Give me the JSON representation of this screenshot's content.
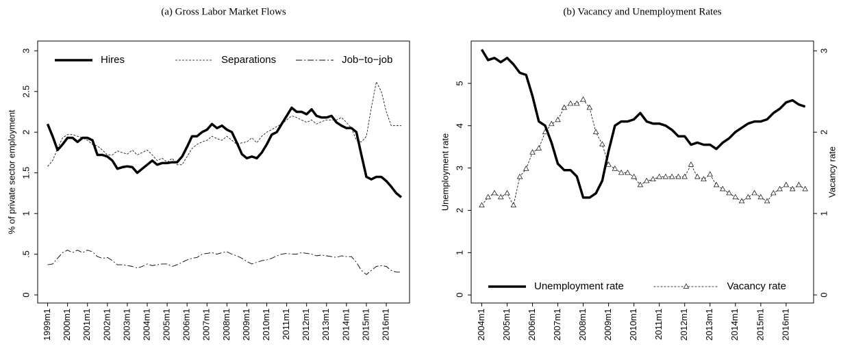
{
  "chart_data": [
    {
      "type": "line",
      "title": "(a) Gross Labor Market Flows",
      "ylabel": "% of private sector employment",
      "legend": "top",
      "x": [
        "1999m1",
        "1999m4",
        "1999m7",
        "1999m10",
        "2000m1",
        "2000m4",
        "2000m7",
        "2000m10",
        "2001m1",
        "2001m4",
        "2001m7",
        "2001m10",
        "2002m1",
        "2002m4",
        "2002m7",
        "2002m10",
        "2003m1",
        "2003m4",
        "2003m7",
        "2003m10",
        "2004m1",
        "2004m4",
        "2004m7",
        "2004m10",
        "2005m1",
        "2005m4",
        "2005m7",
        "2005m10",
        "2006m1",
        "2006m4",
        "2006m7",
        "2006m10",
        "2007m1",
        "2007m4",
        "2007m7",
        "2007m10",
        "2008m1",
        "2008m4",
        "2008m7",
        "2008m10",
        "2009m1",
        "2009m4",
        "2009m7",
        "2009m10",
        "2010m1",
        "2010m4",
        "2010m7",
        "2010m10",
        "2011m1",
        "2011m4",
        "2011m7",
        "2011m10",
        "2012m1",
        "2012m4",
        "2012m7",
        "2012m10",
        "2013m1",
        "2013m4",
        "2013m7",
        "2013m10",
        "2014m1",
        "2014m4",
        "2014m7",
        "2014m10",
        "2015m1",
        "2015m4",
        "2015m7",
        "2015m10",
        "2016m1",
        "2016m4",
        "2016m7",
        "2016m10"
      ],
      "xlim": [
        "1998m7",
        "2017m3"
      ],
      "xticks": [
        "1999m1",
        "2000m1",
        "2001m1",
        "2002m1",
        "2003m1",
        "2004m1",
        "2005m1",
        "2006m1",
        "2007m1",
        "2008m1",
        "2009m1",
        "2010m1",
        "2011m1",
        "2012m1",
        "2013m1",
        "2014m1",
        "2015m1",
        "2016m1"
      ],
      "ylim": [
        -0.1,
        3.12
      ],
      "yticks": [
        0,
        {
          "value": 0.5,
          "label": ".5"
        },
        1,
        1.5,
        2,
        2.5,
        3
      ],
      "series": [
        {
          "name": "Hires",
          "color": "#000000",
          "line_style": "solid",
          "line_width": 3.5,
          "values": [
            2.1,
            1.95,
            1.78,
            1.85,
            1.93,
            1.93,
            1.88,
            1.93,
            1.93,
            1.9,
            1.72,
            1.72,
            1.7,
            1.65,
            1.55,
            1.57,
            1.58,
            1.57,
            1.5,
            1.55,
            1.6,
            1.65,
            1.6,
            1.62,
            1.62,
            1.63,
            1.63,
            1.7,
            1.82,
            1.95,
            1.95,
            2.0,
            2.03,
            2.1,
            2.05,
            2.08,
            2.03,
            2.0,
            1.87,
            1.73,
            1.68,
            1.7,
            1.68,
            1.75,
            1.85,
            1.97,
            2.0,
            2.1,
            2.2,
            2.3,
            2.25,
            2.25,
            2.22,
            2.28,
            2.2,
            2.18,
            2.18,
            2.2,
            2.12,
            2.08,
            2.05,
            2.05,
            2.0,
            1.72,
            1.45,
            1.42,
            1.45,
            1.45,
            1.4,
            1.33,
            1.25,
            1.2
          ]
        },
        {
          "name": "Separations",
          "color": "#000000",
          "line_style": "dashed",
          "line_width": 0.8,
          "values": [
            1.58,
            1.65,
            1.8,
            1.93,
            1.97,
            1.97,
            1.95,
            1.93,
            1.9,
            1.85,
            1.83,
            1.78,
            1.72,
            1.72,
            1.77,
            1.75,
            1.73,
            1.78,
            1.72,
            1.75,
            1.78,
            1.72,
            1.65,
            1.68,
            1.63,
            1.68,
            1.6,
            1.6,
            1.7,
            1.8,
            1.85,
            1.88,
            1.9,
            1.95,
            1.92,
            1.9,
            1.95,
            1.9,
            1.85,
            1.87,
            1.88,
            1.93,
            1.87,
            1.95,
            2.0,
            2.03,
            2.07,
            2.1,
            2.15,
            2.2,
            2.18,
            2.15,
            2.12,
            2.15,
            2.1,
            2.13,
            2.15,
            2.15,
            2.15,
            2.18,
            2.12,
            2.05,
            1.9,
            1.88,
            1.95,
            2.3,
            2.62,
            2.5,
            2.25,
            2.08,
            2.08,
            2.08
          ]
        },
        {
          "name": "Job−to−job",
          "color": "#000000",
          "line_style": "dashdot",
          "line_width": 0.9,
          "values": [
            0.37,
            0.38,
            0.45,
            0.52,
            0.55,
            0.52,
            0.55,
            0.52,
            0.55,
            0.53,
            0.47,
            0.45,
            0.46,
            0.42,
            0.37,
            0.37,
            0.36,
            0.35,
            0.33,
            0.35,
            0.38,
            0.36,
            0.37,
            0.38,
            0.38,
            0.35,
            0.37,
            0.4,
            0.43,
            0.45,
            0.46,
            0.5,
            0.51,
            0.52,
            0.5,
            0.52,
            0.53,
            0.5,
            0.48,
            0.45,
            0.41,
            0.38,
            0.4,
            0.42,
            0.43,
            0.45,
            0.48,
            0.5,
            0.51,
            0.5,
            0.5,
            0.52,
            0.51,
            0.5,
            0.48,
            0.49,
            0.48,
            0.47,
            0.46,
            0.48,
            0.47,
            0.47,
            0.4,
            0.3,
            0.25,
            0.3,
            0.35,
            0.36,
            0.35,
            0.3,
            0.28,
            0.28
          ]
        }
      ]
    },
    {
      "type": "line",
      "title": "(b) Vacancy and Unemployment Rates",
      "ylabel": "Unemployment rate",
      "y2label": "Vacancy rate",
      "legend": "bottom",
      "x": [
        "2004m1",
        "2004m4",
        "2004m7",
        "2004m10",
        "2005m1",
        "2005m4",
        "2005m7",
        "2005m10",
        "2006m1",
        "2006m4",
        "2006m7",
        "2006m10",
        "2007m1",
        "2007m4",
        "2007m7",
        "2007m10",
        "2008m1",
        "2008m4",
        "2008m7",
        "2008m10",
        "2009m1",
        "2009m4",
        "2009m7",
        "2009m10",
        "2010m1",
        "2010m4",
        "2010m7",
        "2010m10",
        "2011m1",
        "2011m4",
        "2011m7",
        "2011m10",
        "2012m1",
        "2012m4",
        "2012m7",
        "2012m10",
        "2013m1",
        "2013m4",
        "2013m7",
        "2013m10",
        "2014m1",
        "2014m4",
        "2014m7",
        "2014m10",
        "2015m1",
        "2015m4",
        "2015m7",
        "2015m10",
        "2016m1",
        "2016m4",
        "2016m7",
        "2016m10"
      ],
      "xlim": [
        "2003m8",
        "2017m2"
      ],
      "xticks": [
        "2004m1",
        "2005m1",
        "2006m1",
        "2007m1",
        "2008m1",
        "2009m1",
        "2010m1",
        "2011m1",
        "2012m1",
        "2013m1",
        "2014m1",
        "2015m1",
        "2016m1"
      ],
      "ylim": [
        -0.19,
        6.0
      ],
      "yticks": [
        0,
        1,
        2,
        3,
        4,
        5
      ],
      "y2lim": [
        -0.1,
        3.12
      ],
      "y2ticks": [
        0,
        1,
        2,
        3
      ],
      "series": [
        {
          "name": "Unemployment rate",
          "color": "#000000",
          "line_style": "solid",
          "line_width": 3.5,
          "values": [
            5.8,
            5.55,
            5.6,
            5.5,
            5.6,
            5.45,
            5.25,
            5.2,
            4.7,
            4.1,
            4.0,
            3.6,
            3.1,
            2.95,
            2.95,
            2.8,
            2.3,
            2.3,
            2.4,
            2.7,
            3.4,
            4.0,
            4.1,
            4.1,
            4.15,
            4.3,
            4.1,
            4.05,
            4.05,
            4.0,
            3.9,
            3.75,
            3.75,
            3.55,
            3.6,
            3.55,
            3.55,
            3.45,
            3.6,
            3.7,
            3.85,
            3.95,
            4.05,
            4.1,
            4.1,
            4.15,
            4.3,
            4.4,
            4.55,
            4.6,
            4.5,
            4.45
          ]
        },
        {
          "name": "Vacancy rate",
          "color": "#000000",
          "line_style": "dashed",
          "line_width": 0.8,
          "marker": "triangle",
          "axis": "y2",
          "values": [
            1.1,
            1.2,
            1.25,
            1.2,
            1.25,
            1.1,
            1.45,
            1.55,
            1.75,
            1.8,
            2.0,
            2.1,
            2.15,
            2.3,
            2.35,
            2.35,
            2.4,
            2.3,
            2.0,
            1.85,
            1.6,
            1.55,
            1.5,
            1.5,
            1.45,
            1.35,
            1.4,
            1.42,
            1.45,
            1.45,
            1.45,
            1.45,
            1.45,
            1.6,
            1.45,
            1.42,
            1.48,
            1.35,
            1.3,
            1.25,
            1.2,
            1.15,
            1.2,
            1.25,
            1.2,
            1.15,
            1.25,
            1.3,
            1.35,
            1.3,
            1.35,
            1.3
          ]
        }
      ]
    }
  ]
}
